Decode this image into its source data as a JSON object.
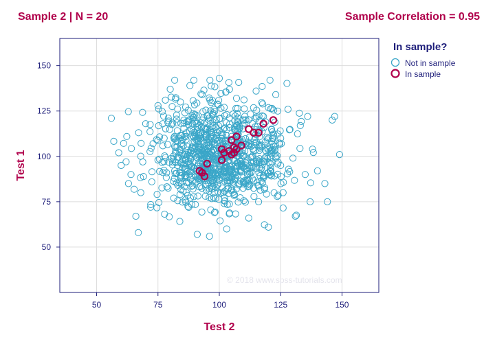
{
  "header": {
    "sample_label": "Sample 2 | N = 20",
    "correlation_label": "Sample Correlation = 0.95"
  },
  "watermark": "© 2018 www.spss-tutorials.com",
  "colors": {
    "population": "#3aa6c8",
    "sample": "#b0004b",
    "axis_text": "#1e1e7a",
    "grid": "#dcdcdc",
    "frame": "#1e1e7a"
  },
  "chart_data": {
    "type": "scatter",
    "title": "",
    "xlabel": "Test 2",
    "ylabel": "Test 1",
    "xlim": [
      35,
      165
    ],
    "ylim": [
      25,
      165
    ],
    "xticks": [
      50,
      75,
      100,
      125,
      150
    ],
    "yticks": [
      50,
      75,
      100,
      125,
      150
    ],
    "grid": true,
    "legend": {
      "title": "In sample?",
      "placement": "right",
      "entries": [
        "Not in sample",
        "In sample"
      ]
    },
    "series": [
      {
        "name": "Not in sample",
        "marker": "open-circle",
        "count_note": "approximately 1000 points, centered near (100, 100), sd about 15 on both axes, uncorrelated",
        "points": [
          [
            56,
            121
          ],
          [
            59,
            102
          ],
          [
            62,
            97
          ],
          [
            64,
            90
          ],
          [
            67,
            58
          ],
          [
            68,
            80
          ],
          [
            70,
            118
          ],
          [
            72,
            72
          ],
          [
            73,
            107
          ],
          [
            75,
            128
          ],
          [
            77,
            118
          ],
          [
            78,
            131
          ],
          [
            80,
            137
          ],
          [
            82,
            110
          ],
          [
            83,
            95
          ],
          [
            84,
            79
          ],
          [
            86,
            124
          ],
          [
            88,
            139
          ],
          [
            90,
            104
          ],
          [
            91,
            57
          ],
          [
            93,
            134
          ],
          [
            95,
            115
          ],
          [
            96,
            56
          ],
          [
            98,
            69
          ],
          [
            100,
            143
          ],
          [
            100,
            88
          ],
          [
            102,
            127
          ],
          [
            103,
            60
          ],
          [
            105,
            111
          ],
          [
            107,
            132
          ],
          [
            108,
            85
          ],
          [
            110,
            120
          ],
          [
            112,
            66
          ],
          [
            114,
            97
          ],
          [
            115,
            136
          ],
          [
            116,
            75
          ],
          [
            118,
            122
          ],
          [
            120,
            61
          ],
          [
            121,
            92
          ],
          [
            123,
            134
          ],
          [
            125,
            110
          ],
          [
            126,
            80
          ],
          [
            128,
            126
          ],
          [
            130,
            99
          ],
          [
            131,
            67
          ],
          [
            133,
            117
          ],
          [
            135,
            90
          ],
          [
            137,
            75
          ],
          [
            138,
            104
          ],
          [
            140,
            92
          ],
          [
            143,
            85
          ],
          [
            146,
            120
          ],
          [
            147,
            122
          ],
          [
            149,
            101
          ],
          [
            136,
            122
          ],
          [
            60,
            95
          ],
          [
            63,
            85
          ],
          [
            66,
            67
          ],
          [
            125,
            95
          ],
          [
            102,
            74
          ]
        ]
      },
      {
        "name": "In sample",
        "marker": "open-circle",
        "points": [
          [
            92,
            92
          ],
          [
            93,
            91
          ],
          [
            94,
            89
          ],
          [
            95,
            96
          ],
          [
            101,
            98
          ],
          [
            101,
            104
          ],
          [
            102,
            102
          ],
          [
            105,
            109
          ],
          [
            105,
            101
          ],
          [
            106,
            102
          ],
          [
            106,
            105
          ],
          [
            107,
            111
          ],
          [
            107,
            104
          ],
          [
            109,
            106
          ],
          [
            112,
            115
          ],
          [
            114,
            113
          ],
          [
            116,
            113
          ],
          [
            118,
            118
          ],
          [
            122,
            120
          ],
          [
            104,
            103
          ]
        ]
      }
    ]
  }
}
